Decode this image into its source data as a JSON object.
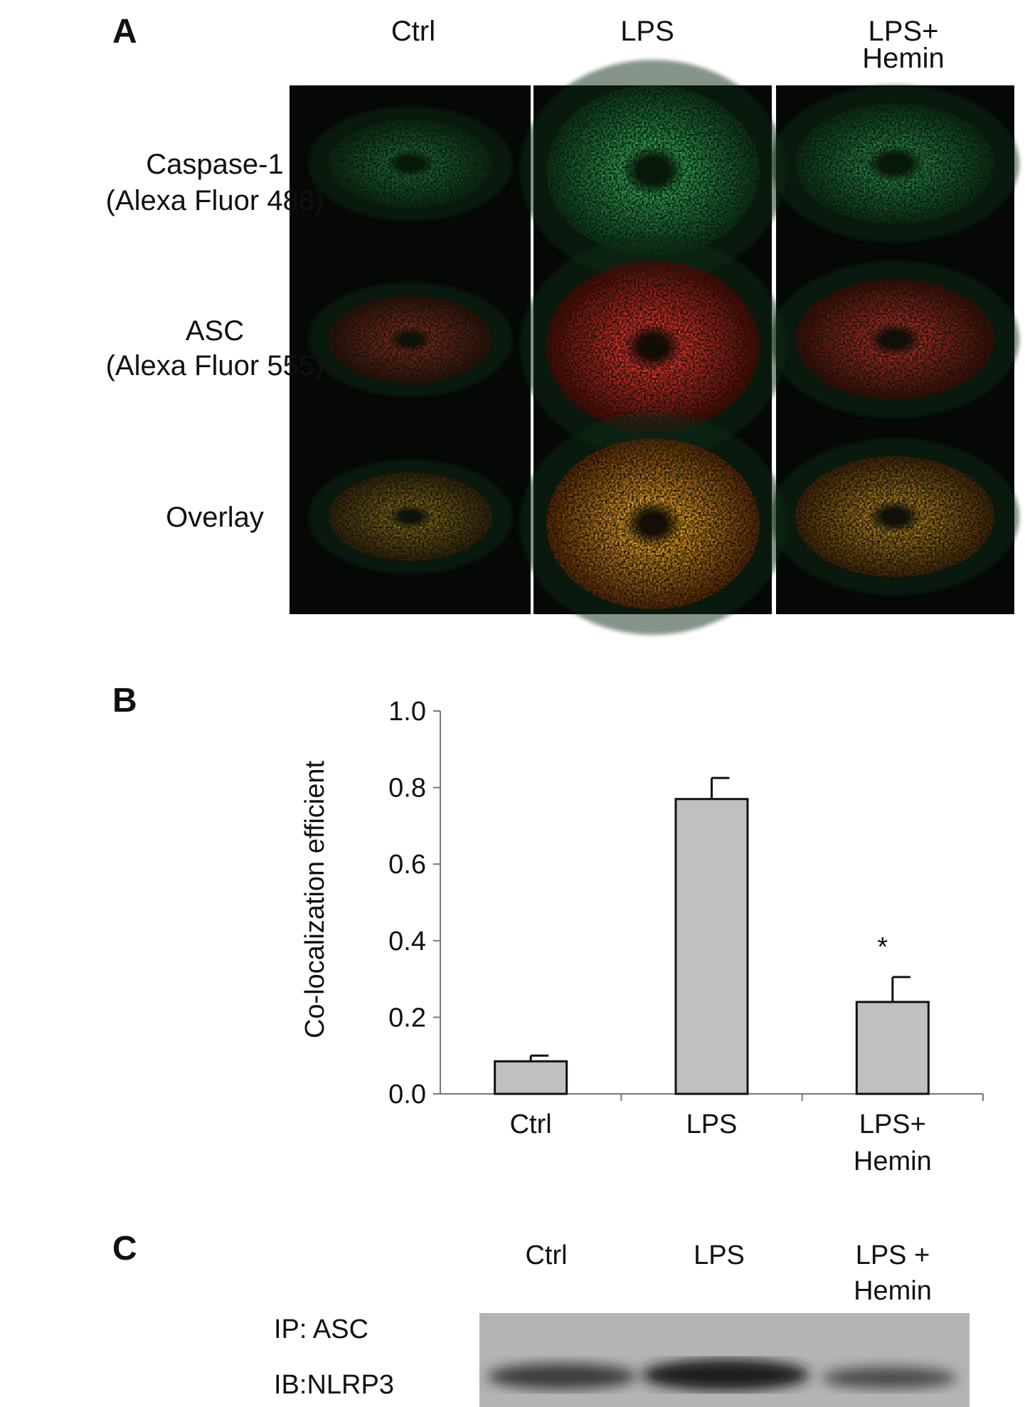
{
  "panel_a": {
    "letter": "A",
    "columns": [
      "Ctrl",
      "LPS",
      "LPS+\nHemin"
    ],
    "rows": [
      [
        "Caspase-1",
        "(Alexa Fluor 488)"
      ],
      [
        "ASC",
        "(Alexa Fluor 555)"
      ],
      [
        "Overlay"
      ]
    ]
  },
  "chart_data": {
    "type": "bar",
    "letter": "B",
    "y_label": "Co-localization efficient",
    "categories": [
      "Ctrl",
      "LPS",
      "LPS+\nHemin"
    ],
    "values": [
      0.085,
      0.77,
      0.24
    ],
    "errors": [
      0.015,
      0.055,
      0.065
    ],
    "color": "#c0c0c0",
    "ylim": [
      0,
      1.0
    ],
    "yticks": [
      {
        "value": 0,
        "label": "0.0"
      },
      0.2,
      0.4,
      0.6,
      0.8,
      {
        "value": 1.0,
        "label": "1.0"
      }
    ],
    "annotation": "*"
  },
  "panel_c": {
    "letter": "C",
    "columns": [
      "Ctrl",
      "LPS",
      "LPS +\nHemin"
    ],
    "rows": [
      "IP: ASC",
      "IB:NLRP3"
    ]
  }
}
